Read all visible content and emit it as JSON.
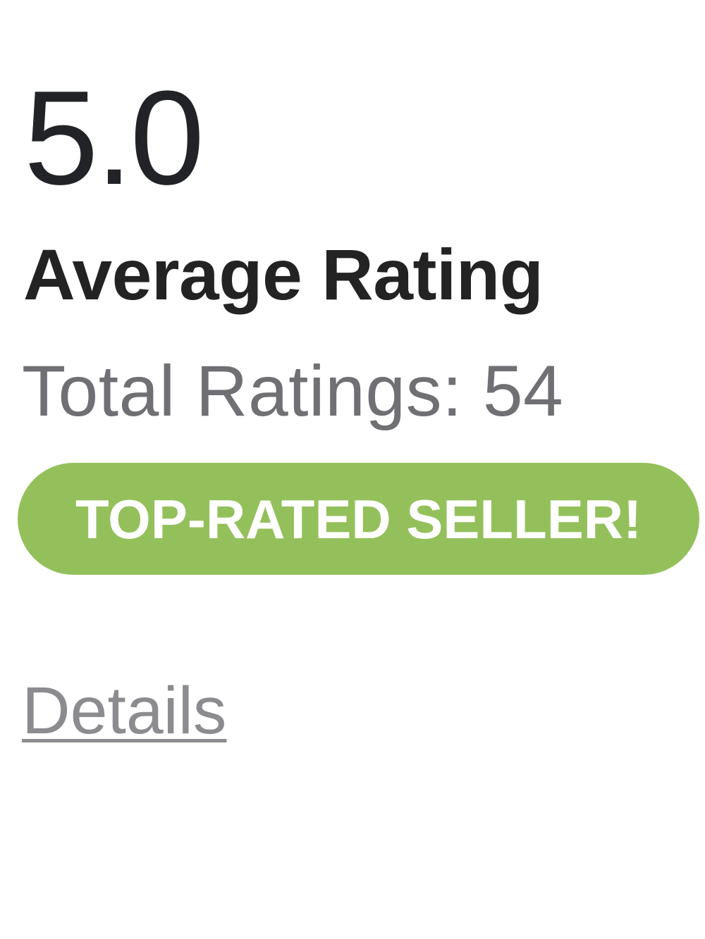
{
  "seller_rating_card": {
    "average_rating_value": "5.0",
    "average_rating_label": "Average Rating",
    "total_ratings_text": "Total Ratings: 54",
    "badge": {
      "label": "TOP-RATED SELLER!",
      "background_color": "#94c05b",
      "text_color": "#ffffff"
    },
    "details_link": {
      "label": "Details"
    },
    "colors": {
      "primary_text": "#222326",
      "heading_text": "#232323",
      "secondary_text": "#6f6f74",
      "link_text": "#8c8c90"
    }
  }
}
